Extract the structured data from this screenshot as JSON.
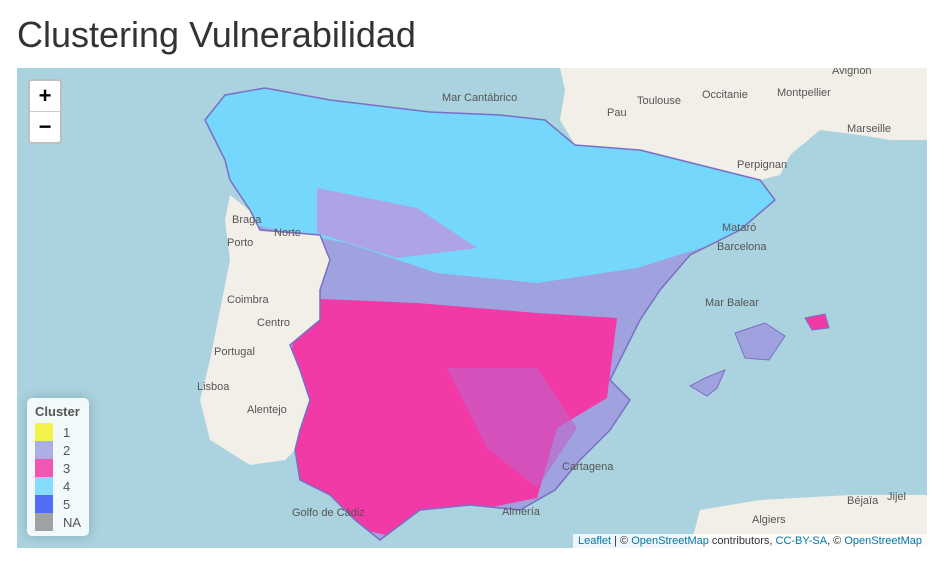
{
  "header": {
    "title": "Clustering Vulnerabilidad"
  },
  "zoom": {
    "in": "+",
    "out": "−"
  },
  "legend": {
    "title": "Cluster",
    "items": [
      {
        "label": "1",
        "color": "#f4f22e"
      },
      {
        "label": "2",
        "color": "#9fa2df"
      },
      {
        "label": "3",
        "color": "#f23aa6"
      },
      {
        "label": "4",
        "color": "#74d7fb"
      },
      {
        "label": "5",
        "color": "#3355f6"
      },
      {
        "label": "NA",
        "color": "#929292"
      }
    ]
  },
  "map_labels": [
    "Mar Cantábrico",
    "Toulouse",
    "Occitanie",
    "Montpellier",
    "Avignon",
    "Marseille",
    "Pau",
    "Perpignan",
    "Braga",
    "Porto",
    "Norte",
    "Mataró",
    "Barcelona",
    "Mar Balear",
    "Coimbra",
    "Centro",
    "Portugal",
    "Lisboa",
    "Alentejo",
    "Cartagena",
    "Algiers",
    "Béjaïa",
    "Jijel",
    "Almería",
    "Golfo de Cádiz"
  ],
  "attribution": [
    {
      "text": "Leaflet",
      "link": true
    },
    {
      "text": " | © ",
      "link": false
    },
    {
      "text": "OpenStreetMap",
      "link": true
    },
    {
      "text": " contributors, ",
      "link": false
    },
    {
      "text": "CC-BY-SA",
      "link": true
    },
    {
      "text": ", © ",
      "link": false
    },
    {
      "text": "OpenStreetMap",
      "link": true
    }
  ]
}
